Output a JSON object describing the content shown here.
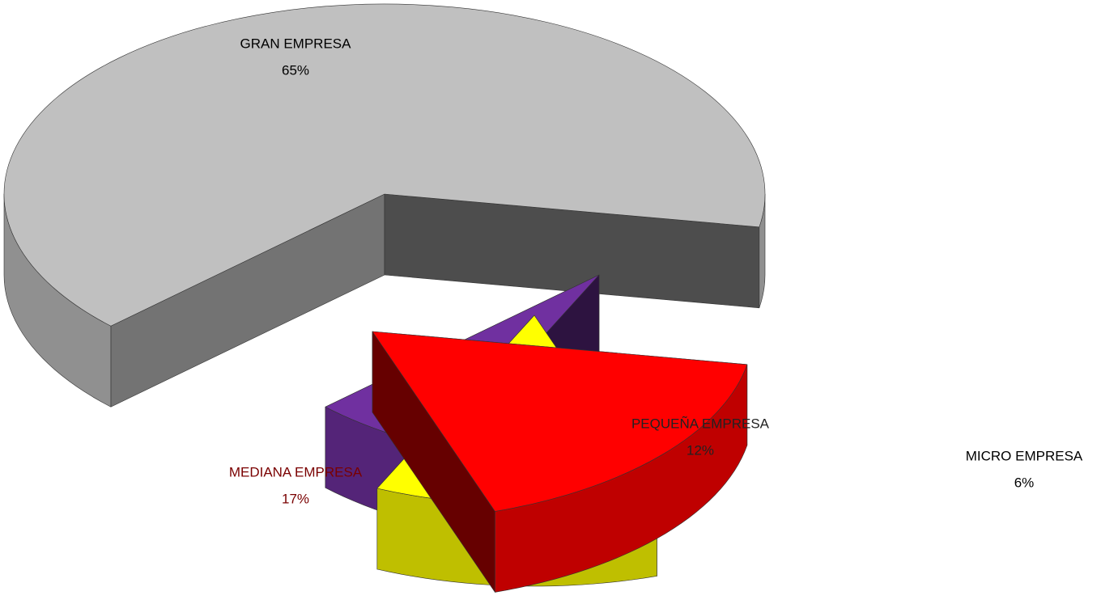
{
  "chart_data": {
    "type": "pie3d",
    "categories": [
      "GRAN EMPRESA",
      "MEDIANA EMPRESA",
      "PEQUEÑA EMPRESA",
      "MICRO EMPRESA"
    ],
    "values": [
      65,
      17,
      12,
      6
    ],
    "value_labels": [
      "65%",
      "17%",
      "12%",
      "6%"
    ],
    "colors": [
      "#c0c0c0",
      "#ff0000",
      "#ffff00",
      "#7030a0"
    ]
  }
}
